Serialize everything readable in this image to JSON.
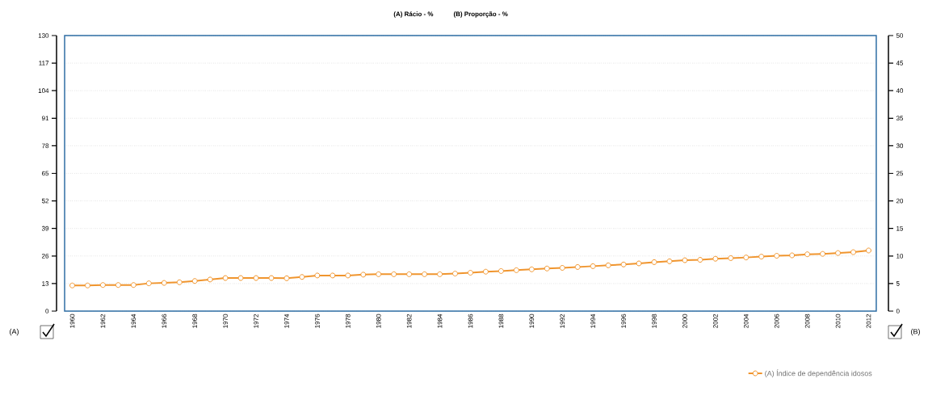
{
  "chart_data": {
    "type": "line",
    "ylabel": "(A) Rácio - %",
    "y2label": "(B) Proporção - %",
    "x": [
      1960,
      1961,
      1962,
      1963,
      1964,
      1965,
      1966,
      1967,
      1968,
      1969,
      1970,
      1971,
      1972,
      1973,
      1974,
      1975,
      1976,
      1977,
      1978,
      1979,
      1980,
      1981,
      1982,
      1983,
      1984,
      1985,
      1986,
      1987,
      1988,
      1989,
      1990,
      1991,
      1992,
      1993,
      1994,
      1995,
      1996,
      1997,
      1998,
      1999,
      2000,
      2001,
      2002,
      2003,
      2004,
      2005,
      2006,
      2007,
      2008,
      2009,
      2010,
      2011,
      2012
    ],
    "series": [
      {
        "name": "(A) Índice de dependência idosos",
        "color": "#f0952e",
        "values": [
          12.1,
          12.1,
          12.3,
          12.3,
          12.3,
          13.1,
          13.3,
          13.6,
          14.2,
          14.9,
          15.6,
          15.6,
          15.6,
          15.6,
          15.5,
          16.1,
          16.8,
          16.8,
          16.8,
          17.2,
          17.4,
          17.4,
          17.4,
          17.4,
          17.4,
          17.7,
          18.1,
          18.6,
          18.9,
          19.3,
          19.7,
          20.1,
          20.4,
          20.8,
          21.2,
          21.6,
          22.0,
          22.5,
          23.1,
          23.5,
          24.0,
          24.2,
          24.7,
          25.0,
          25.3,
          25.7,
          26.1,
          26.3,
          26.8,
          27.0,
          27.4,
          27.8,
          28.6
        ]
      }
    ],
    "xlim": [
      1959.5,
      2012.5
    ],
    "xticks": [
      1960,
      1962,
      1964,
      1966,
      1968,
      1970,
      1972,
      1974,
      1976,
      1978,
      1980,
      1982,
      1984,
      1986,
      1988,
      1990,
      1992,
      1994,
      1996,
      1998,
      2000,
      2002,
      2004,
      2006,
      2008,
      2010,
      2012
    ],
    "ylim": [
      0,
      130
    ],
    "yticks": [
      0,
      13,
      26,
      39,
      52,
      65,
      78,
      91,
      104,
      117,
      130
    ],
    "y2lim": [
      0,
      50
    ],
    "y2ticks": [
      0,
      5,
      10,
      15,
      20,
      25,
      30,
      35,
      40,
      45,
      50
    ],
    "grid": "y",
    "legend": "bottom right",
    "marker": "circle",
    "line_style": "solid",
    "annotations": [
      "(A)",
      "(B)"
    ]
  }
}
